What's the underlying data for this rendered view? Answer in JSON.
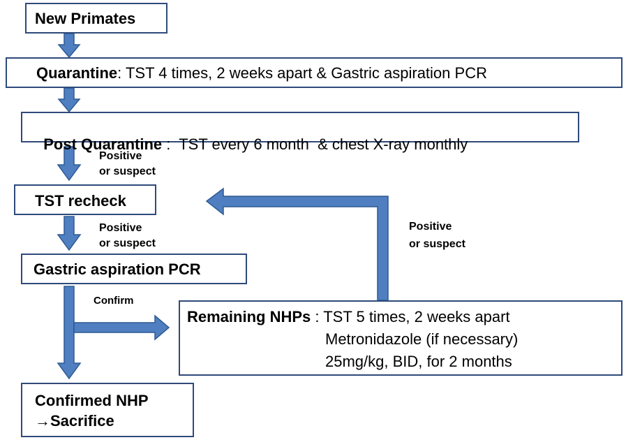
{
  "colors": {
    "arrow_fill": "#4f7fc0",
    "arrow_stroke": "#2f5a93",
    "box_border": "#2e4a7a"
  },
  "nodes": {
    "new_primates": "New Primates",
    "quarantine": {
      "title": "Quarantine",
      "detail": ": TST 4 times, 2 weeks apart & Gastric aspiration PCR"
    },
    "post_quarantine": {
      "title": "Post Quarantine",
      "detail": " :  TST every 6 month  & chest X-ray monthly"
    },
    "tst_recheck": "TST recheck",
    "gastric_pcr": "Gastric aspiration PCR",
    "remaining": {
      "title": "Remaining NHPs",
      "detail": " : TST 5 times, 2 weeks apart",
      "line2": "Metronidazole (if necessary)",
      "line3": "25mg/kg, BID, for 2 months"
    },
    "confirmed": {
      "line1": "Confirmed NHP",
      "line2": "→Sacrifice"
    }
  },
  "edge_labels": {
    "positive_1": {
      "line1": "Positive",
      "line2": "or suspect"
    },
    "positive_2": {
      "line1": "Positive",
      "line2": "or suspect"
    },
    "positive_3": {
      "line1": "Positive",
      "line2": "or suspect"
    },
    "confirm": "Confirm"
  }
}
